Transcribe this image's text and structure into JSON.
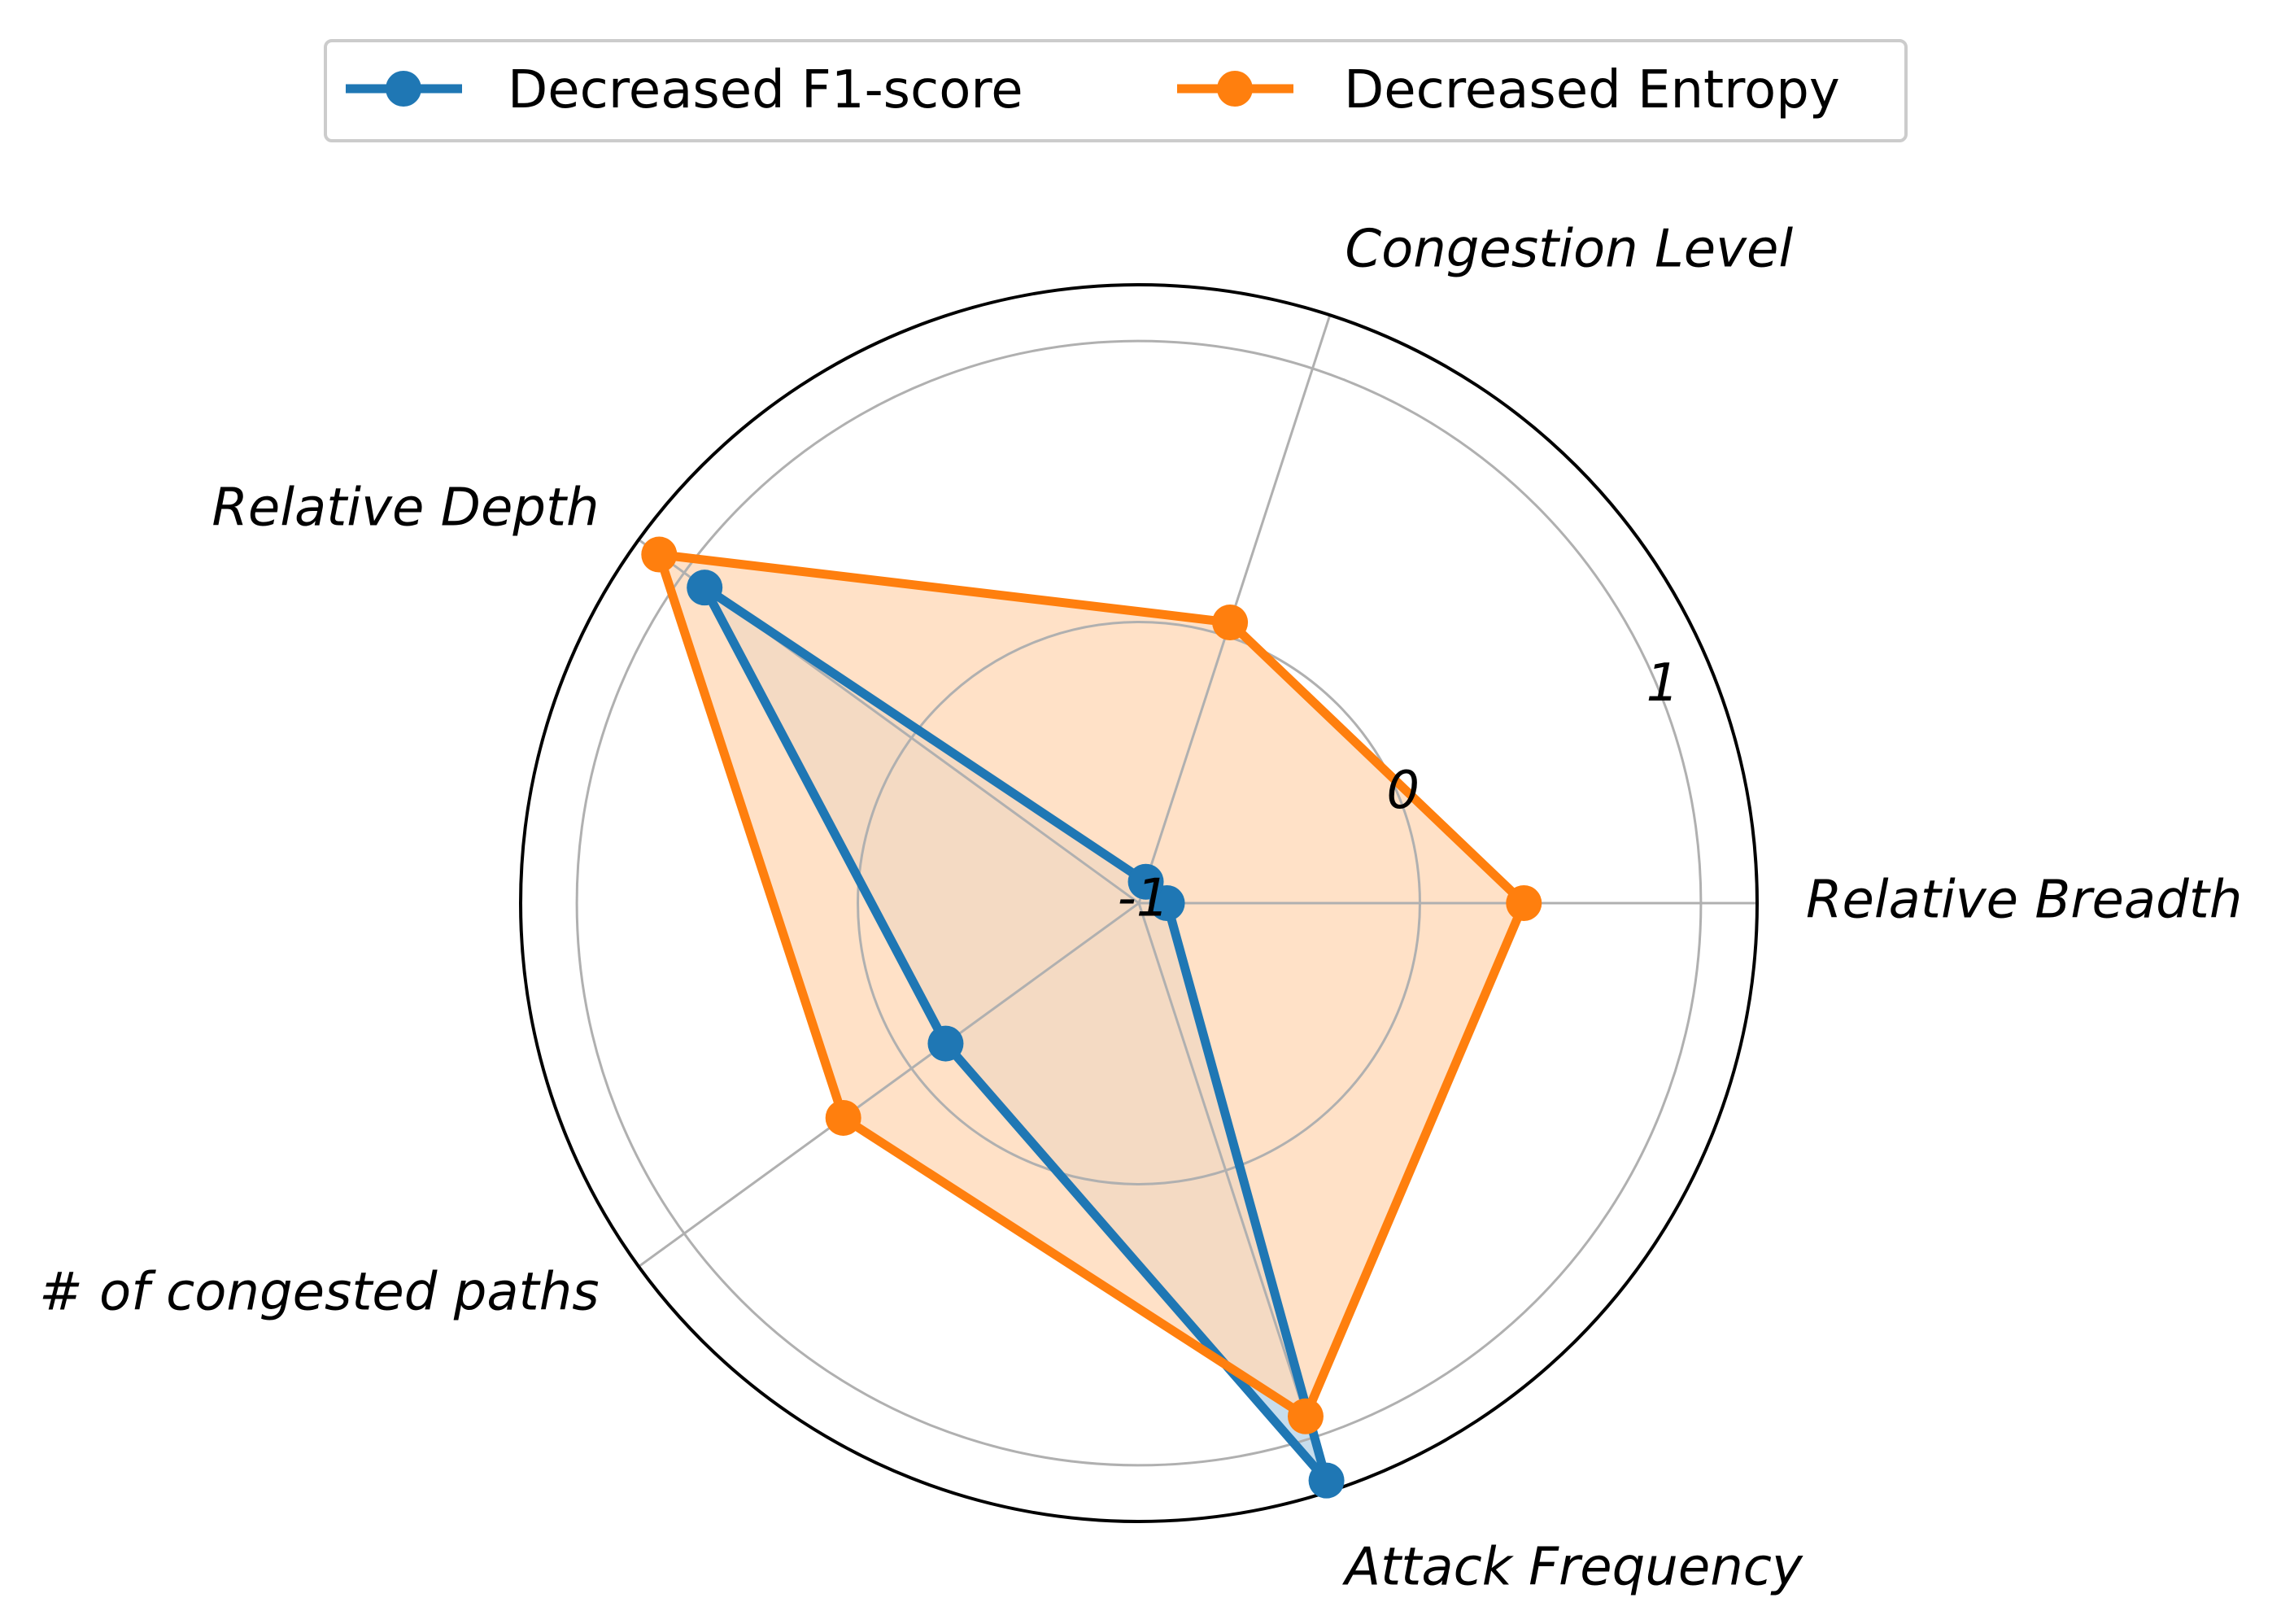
{
  "chart_data": {
    "type": "radar",
    "axes": [
      "Relative Breadth",
      "Congestion Level",
      "Relative Depth",
      "# of congested paths",
      "Attack Frequency"
    ],
    "r_ticks": [
      {
        "value": -1,
        "label": "-1"
      },
      {
        "value": 0,
        "label": "0"
      },
      {
        "value": 1,
        "label": "1"
      }
    ],
    "r_range": [
      -1,
      1.2
    ],
    "grid": true,
    "legend_position": "top-center",
    "series": [
      {
        "name": "Decreased F1-score",
        "color": "#1f77b4",
        "values": [
          -0.9,
          -0.92,
          0.91,
          -0.15,
          1.16
        ],
        "fill": "#1f77b4"
      },
      {
        "name": "Decreased Entropy",
        "color": "#ff7f0e",
        "values": [
          0.37,
          0.05,
          1.11,
          0.3,
          0.92
        ],
        "fill": "#ffdab9"
      }
    ]
  }
}
